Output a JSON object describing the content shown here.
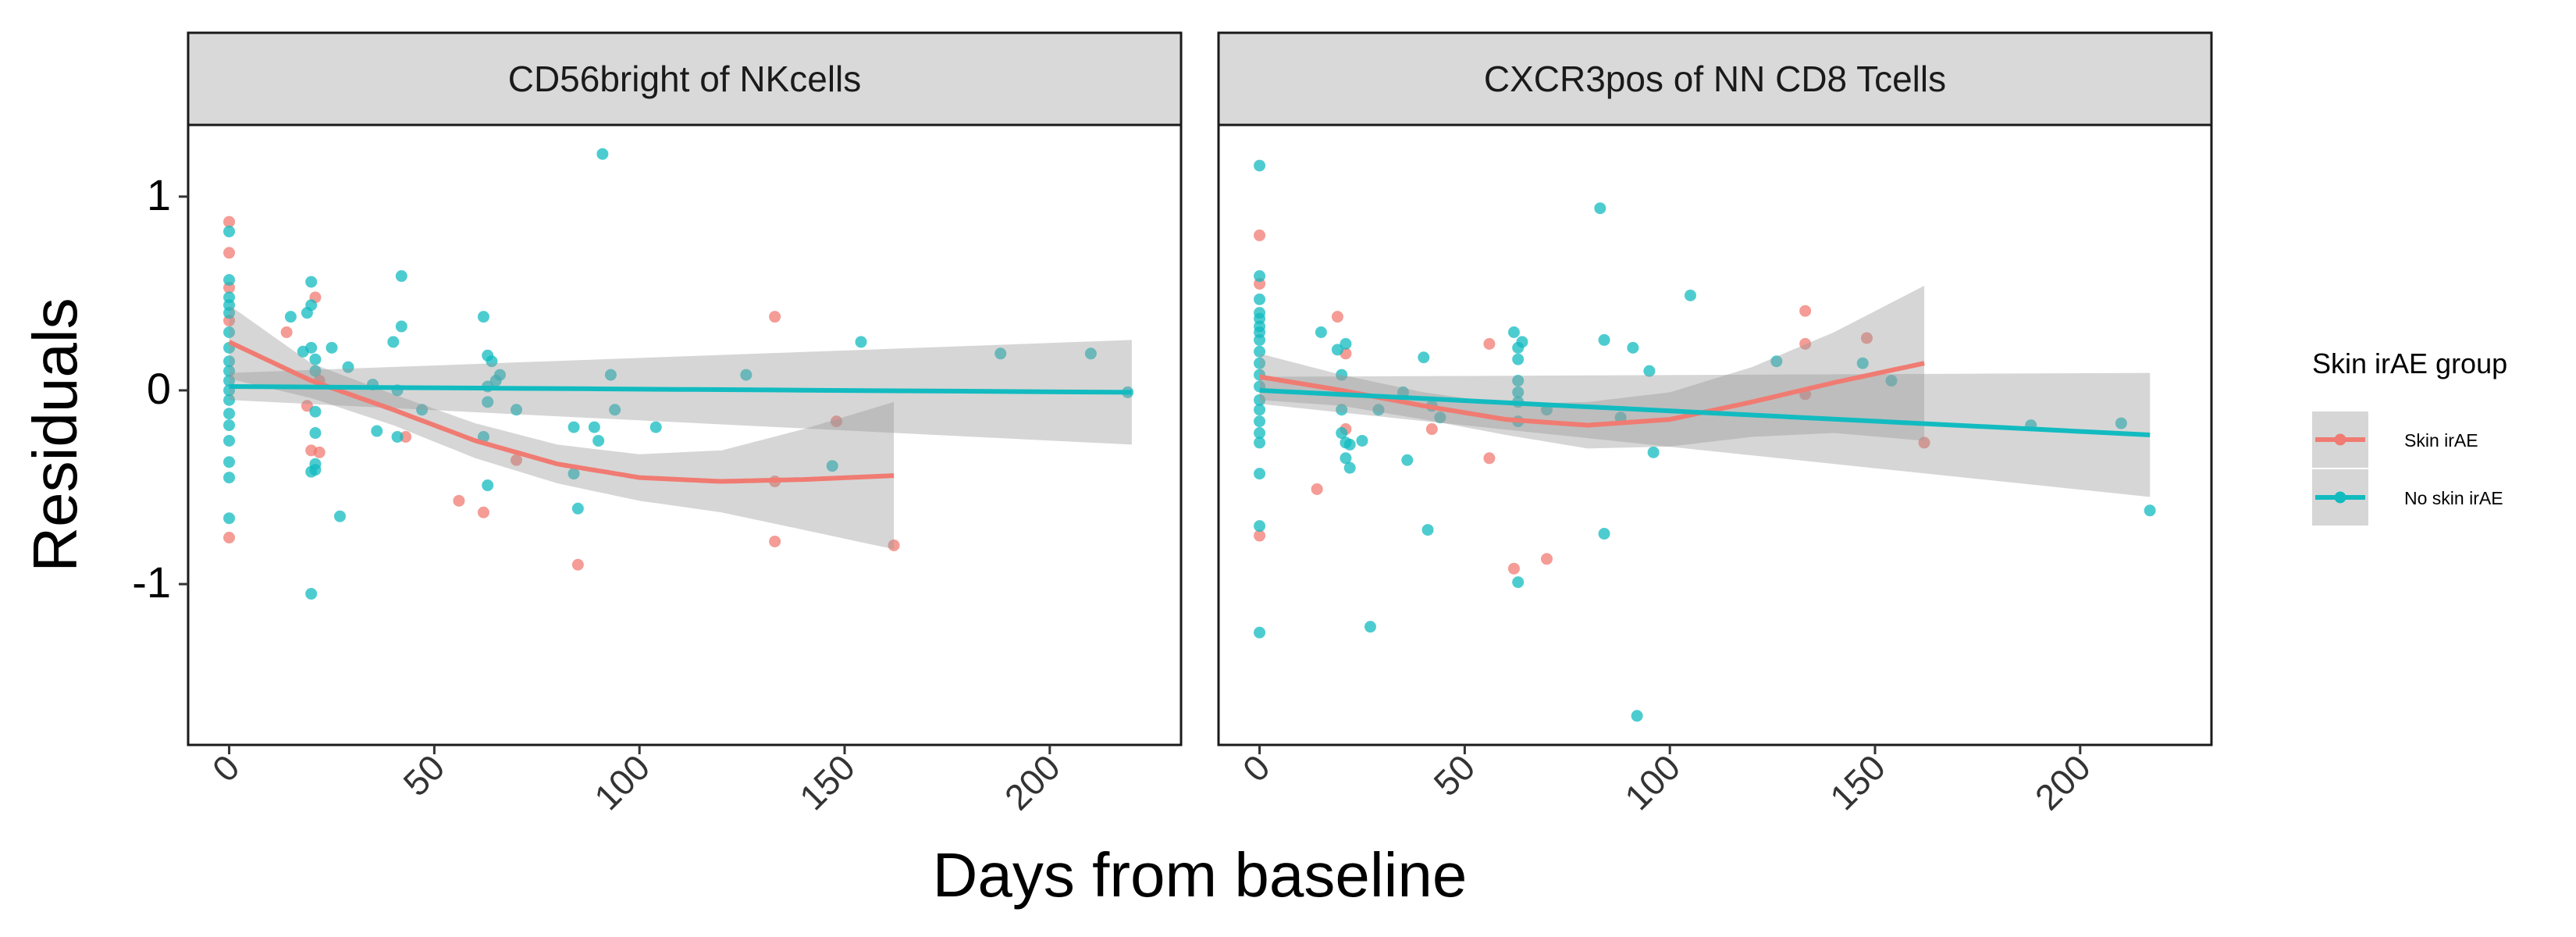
{
  "chart_data": {
    "type": "scatter",
    "facets": [
      {
        "title": "CD56bright of NKcells",
        "series": [
          {
            "name": "Skin irAE",
            "points": [
              [
                0,
                0.87
              ],
              [
                0,
                0.71
              ],
              [
                0,
                0.53
              ],
              [
                0,
                0.36
              ],
              [
                0,
                -0.76
              ],
              [
                14,
                0.3
              ],
              [
                19,
                -0.08
              ],
              [
                20,
                -0.31
              ],
              [
                21,
                0.48
              ],
              [
                22,
                -0.32
              ],
              [
                22,
                0.05
              ],
              [
                43,
                -0.24
              ],
              [
                56,
                -0.57
              ],
              [
                62,
                -0.63
              ],
              [
                70,
                -0.36
              ],
              [
                85,
                -0.9
              ],
              [
                133,
                0.38
              ],
              [
                133,
                -0.47
              ],
              [
                133,
                -0.78
              ],
              [
                148,
                -0.16
              ],
              [
                162,
                -0.8
              ]
            ],
            "smooth": [
              [
                0,
                0.25
              ],
              [
                20,
                0.05
              ],
              [
                40,
                -0.1
              ],
              [
                60,
                -0.26
              ],
              [
                80,
                -0.38
              ],
              [
                100,
                -0.45
              ],
              [
                120,
                -0.47
              ],
              [
                140,
                -0.46
              ],
              [
                162,
                -0.44
              ]
            ],
            "band_halfwidth": [
              0.19,
              0.09,
              0.08,
              0.09,
              0.1,
              0.12,
              0.16,
              0.26,
              0.38
            ]
          },
          {
            "name": "No skin irAE",
            "points": [
              [
                0,
                0.82
              ],
              [
                0,
                0.57
              ],
              [
                0,
                0.48
              ],
              [
                0,
                0.44
              ],
              [
                0,
                0.4
              ],
              [
                0,
                0.3
              ],
              [
                0,
                0.22
              ],
              [
                0,
                0.15
              ],
              [
                0,
                0.1
              ],
              [
                0,
                0.05
              ],
              [
                0,
                0.0
              ],
              [
                0,
                -0.05
              ],
              [
                0,
                -0.12
              ],
              [
                0,
                -0.18
              ],
              [
                0,
                -0.26
              ],
              [
                0,
                -0.37
              ],
              [
                0,
                -0.45
              ],
              [
                0,
                -0.66
              ],
              [
                15,
                0.38
              ],
              [
                18,
                0.2
              ],
              [
                19,
                0.4
              ],
              [
                20,
                0.44
              ],
              [
                20,
                0.56
              ],
              [
                20,
                0.22
              ],
              [
                20,
                -0.42
              ],
              [
                21,
                0.16
              ],
              [
                21,
                0.1
              ],
              [
                21,
                -0.11
              ],
              [
                21,
                -0.22
              ],
              [
                21,
                -0.38
              ],
              [
                21,
                -0.41
              ],
              [
                20,
                -1.05
              ],
              [
                25,
                0.22
              ],
              [
                27,
                -0.65
              ],
              [
                29,
                0.12
              ],
              [
                35,
                0.03
              ],
              [
                36,
                -0.21
              ],
              [
                40,
                0.25
              ],
              [
                41,
                0.0
              ],
              [
                41,
                -0.24
              ],
              [
                42,
                0.59
              ],
              [
                42,
                0.33
              ],
              [
                47,
                -0.1
              ],
              [
                62,
                0.38
              ],
              [
                63,
                0.18
              ],
              [
                63,
                0.02
              ],
              [
                63,
                -0.06
              ],
              [
                63,
                -0.49
              ],
              [
                62,
                -0.24
              ],
              [
                64,
                0.15
              ],
              [
                65,
                0.05
              ],
              [
                66,
                0.08
              ],
              [
                70,
                -0.1
              ],
              [
                84,
                -0.19
              ],
              [
                84,
                -0.43
              ],
              [
                85,
                -0.61
              ],
              [
                89,
                -0.19
              ],
              [
                90,
                -0.26
              ],
              [
                91,
                1.22
              ],
              [
                93,
                0.08
              ],
              [
                94,
                -0.1
              ],
              [
                104,
                -0.19
              ],
              [
                126,
                0.08
              ],
              [
                147,
                -0.39
              ],
              [
                154,
                0.25
              ],
              [
                188,
                0.19
              ],
              [
                210,
                0.19
              ],
              [
                219,
                -0.01
              ]
            ],
            "smooth": [
              [
                0,
                0.02
              ],
              [
                220,
                -0.01
              ]
            ],
            "band_halfwidth": [
              0.07,
              0.27
            ]
          }
        ]
      },
      {
        "title": "CXCR3pos of NN CD8 Tcells",
        "series": [
          {
            "name": "Skin irAE",
            "points": [
              [
                0,
                0.8
              ],
              [
                0,
                0.55
              ],
              [
                0,
                -0.75
              ],
              [
                14,
                -0.51
              ],
              [
                19,
                0.38
              ],
              [
                21,
                0.19
              ],
              [
                21,
                -0.2
              ],
              [
                42,
                -0.2
              ],
              [
                56,
                0.24
              ],
              [
                56,
                -0.35
              ],
              [
                62,
                -0.92
              ],
              [
                70,
                -0.87
              ],
              [
                133,
                0.41
              ],
              [
                133,
                0.24
              ],
              [
                133,
                -0.02
              ],
              [
                148,
                0.27
              ],
              [
                162,
                -0.27
              ]
            ],
            "smooth": [
              [
                0,
                0.07
              ],
              [
                20,
                0.0
              ],
              [
                40,
                -0.08
              ],
              [
                60,
                -0.15
              ],
              [
                80,
                -0.18
              ],
              [
                100,
                -0.15
              ],
              [
                120,
                -0.06
              ],
              [
                140,
                0.04
              ],
              [
                162,
                0.14
              ]
            ],
            "band_halfwidth": [
              0.12,
              0.08,
              0.07,
              0.08,
              0.12,
              0.14,
              0.18,
              0.26,
              0.4
            ]
          },
          {
            "name": "No skin irAE",
            "points": [
              [
                0,
                1.16
              ],
              [
                0,
                0.59
              ],
              [
                0,
                0.47
              ],
              [
                0,
                0.4
              ],
              [
                0,
                0.37
              ],
              [
                0,
                0.33
              ],
              [
                0,
                0.3
              ],
              [
                0,
                0.26
              ],
              [
                0,
                0.2
              ],
              [
                0,
                0.14
              ],
              [
                0,
                0.08
              ],
              [
                0,
                0.02
              ],
              [
                0,
                -0.05
              ],
              [
                0,
                -0.1
              ],
              [
                0,
                -0.16
              ],
              [
                0,
                -0.22
              ],
              [
                0,
                -0.27
              ],
              [
                0,
                -0.43
              ],
              [
                0,
                -0.7
              ],
              [
                0,
                -1.25
              ],
              [
                15,
                0.3
              ],
              [
                19,
                0.21
              ],
              [
                20,
                0.08
              ],
              [
                20,
                -0.1
              ],
              [
                20,
                -0.22
              ],
              [
                21,
                0.24
              ],
              [
                21,
                -0.27
              ],
              [
                21,
                -0.35
              ],
              [
                22,
                -0.28
              ],
              [
                22,
                -0.4
              ],
              [
                25,
                -0.26
              ],
              [
                27,
                -1.22
              ],
              [
                29,
                -0.1
              ],
              [
                35,
                -0.01
              ],
              [
                36,
                -0.36
              ],
              [
                40,
                0.17
              ],
              [
                41,
                -0.72
              ],
              [
                42,
                -0.08
              ],
              [
                44,
                -0.14
              ],
              [
                62,
                0.3
              ],
              [
                63,
                0.22
              ],
              [
                63,
                0.16
              ],
              [
                63,
                0.05
              ],
              [
                63,
                -0.01
              ],
              [
                63,
                -0.06
              ],
              [
                63,
                -0.16
              ],
              [
                63,
                -0.99
              ],
              [
                64,
                0.25
              ],
              [
                70,
                -0.1
              ],
              [
                83,
                0.94
              ],
              [
                84,
                0.26
              ],
              [
                84,
                -0.74
              ],
              [
                88,
                -0.14
              ],
              [
                91,
                0.22
              ],
              [
                92,
                -1.68
              ],
              [
                95,
                0.1
              ],
              [
                96,
                -0.32
              ],
              [
                105,
                0.49
              ],
              [
                126,
                0.15
              ],
              [
                147,
                0.14
              ],
              [
                154,
                0.05
              ],
              [
                188,
                -0.18
              ],
              [
                210,
                -0.17
              ],
              [
                217,
                -0.62
              ]
            ],
            "smooth": [
              [
                0,
                0.0
              ],
              [
                217,
                -0.23
              ]
            ],
            "band_halfwidth": [
              0.07,
              0.32
            ]
          }
        ]
      }
    ],
    "xlabel": "Days from baseline",
    "ylabel": "Residuals",
    "xlim": [
      -10,
      232
    ],
    "ylim": [
      -1.83,
      1.37
    ],
    "xticks": [
      0,
      50,
      100,
      150,
      200
    ],
    "yticks": [
      1,
      0,
      -1
    ],
    "ytick_labels": [
      "1",
      "0",
      "-1"
    ],
    "legend": {
      "title": "Skin irAE group",
      "position": "right",
      "entries": [
        "Skin irAE",
        "No skin irAE"
      ]
    },
    "colors": {
      "skin": "#F07B72",
      "noskin": "#12BBC0",
      "band": "#999999",
      "strip": "#D9D9D9"
    },
    "grid": false
  }
}
